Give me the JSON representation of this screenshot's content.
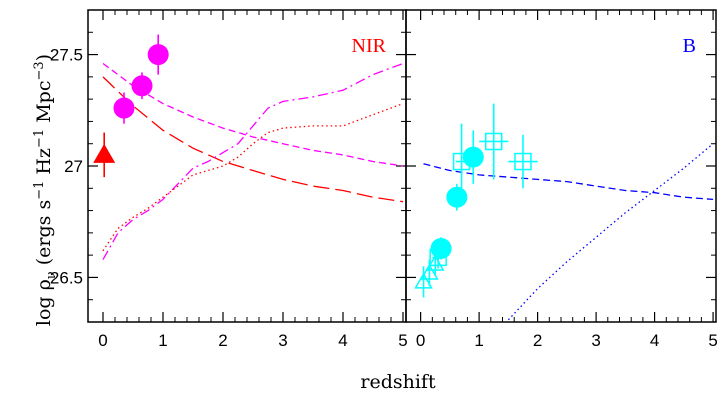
{
  "chart_data": [
    {
      "type": "scatter",
      "panel": "left",
      "panel_label": "NIR",
      "panel_label_color": "#ff0000",
      "xlabel": "redshift",
      "ylabel": "log ρν (ergs s⁻¹ Hz⁻¹ Mpc⁻³)",
      "ylabel_parts": {
        "main": "log ρ",
        "sub": "ν",
        "units": " (ergs s",
        "exp1": "−1",
        "mid1": " Hz",
        "exp2": "−1",
        "mid2": " Mpc",
        "exp3": "−3",
        "close": ")"
      },
      "xlim": [
        -0.25,
        5.05
      ],
      "ylim": [
        26.3,
        27.7
      ],
      "x_ticks": [
        0,
        1,
        2,
        3,
        4,
        5
      ],
      "y_ticks": [
        26.5,
        27,
        27.5
      ],
      "y_tick_labels": [
        "26.5",
        "27",
        "27.5"
      ],
      "series": [
        {
          "marker": "filled-circle",
          "color": "#ff00ff",
          "points": [
            {
              "x": 0.35,
              "y": 27.26,
              "yerr": 0.07
            },
            {
              "x": 0.65,
              "y": 27.36,
              "yerr": 0.06
            },
            {
              "x": 0.92,
              "y": 27.5,
              "yerr": 0.09
            }
          ]
        },
        {
          "marker": "filled-triangle",
          "color": "#ff0000",
          "points": [
            {
              "x": 0.02,
              "y": 27.05,
              "yerr": 0.1
            }
          ]
        }
      ],
      "curves": [
        {
          "style": "short-dash",
          "color": "#ff00ff",
          "x": [
            0,
            0.5,
            1,
            1.5,
            2,
            2.5,
            3,
            3.5,
            4,
            4.5,
            5
          ],
          "y": [
            27.46,
            27.36,
            27.28,
            27.22,
            27.17,
            27.13,
            27.1,
            27.07,
            27.05,
            27.02,
            27.0
          ]
        },
        {
          "style": "long-dash",
          "color": "#ff0000",
          "x": [
            0,
            0.5,
            1,
            1.5,
            2,
            2.5,
            3,
            3.5,
            4,
            4.5,
            5
          ],
          "y": [
            27.4,
            27.27,
            27.16,
            27.08,
            27.02,
            26.98,
            26.94,
            26.91,
            26.89,
            26.86,
            26.84
          ]
        },
        {
          "style": "dot-dash",
          "color": "#ff00ff",
          "x": [
            0,
            0.25,
            0.5,
            0.75,
            1,
            1.25,
            1.5,
            1.75,
            2,
            2.25,
            2.5,
            2.75,
            3,
            3.5,
            4,
            4.5,
            5
          ],
          "y": [
            26.58,
            26.7,
            26.76,
            26.8,
            26.85,
            26.92,
            26.99,
            27.02,
            27.06,
            27.1,
            27.18,
            27.26,
            27.29,
            27.31,
            27.34,
            27.41,
            27.46
          ]
        },
        {
          "style": "dotted",
          "color": "#ff0000",
          "x": [
            0,
            0.25,
            0.5,
            0.75,
            1,
            1.25,
            1.5,
            1.75,
            2,
            2.25,
            2.5,
            2.75,
            3,
            3.5,
            4,
            4.5,
            5
          ],
          "y": [
            26.62,
            26.72,
            26.77,
            26.81,
            26.86,
            26.91,
            26.96,
            26.98,
            27.0,
            27.04,
            27.1,
            27.15,
            27.17,
            27.18,
            27.18,
            27.23,
            27.28
          ]
        }
      ]
    },
    {
      "type": "scatter",
      "panel": "right",
      "panel_label": "B",
      "panel_label_color": "#0000ff",
      "xlim": [
        -0.25,
        5.05
      ],
      "ylim": [
        26.3,
        27.7
      ],
      "x_ticks": [
        0,
        1,
        2,
        3,
        4,
        5
      ],
      "series": [
        {
          "marker": "filled-circle",
          "color": "#00ffff",
          "points": [
            {
              "x": 0.35,
              "y": 26.63,
              "yerr": 0.05
            },
            {
              "x": 0.62,
              "y": 26.86,
              "yerr": 0.06
            },
            {
              "x": 0.9,
              "y": 27.04,
              "yerr": 0.12
            }
          ]
        },
        {
          "marker": "open-square",
          "color": "#00ffff",
          "points": [
            {
              "x": 0.3,
              "y": 26.59,
              "yerr": 0.05,
              "xerr": 0.1
            },
            {
              "x": 0.7,
              "y": 27.02,
              "yerr": 0.17,
              "xerr": 0.1
            },
            {
              "x": 1.25,
              "y": 27.11,
              "yerr": 0.17,
              "xerr": 0.25
            },
            {
              "x": 1.75,
              "y": 27.02,
              "yerr": 0.12,
              "xerr": 0.25
            }
          ]
        },
        {
          "marker": "open-triangle",
          "color": "#00ffff",
          "points": [
            {
              "x": 0.05,
              "y": 26.48,
              "yerr": 0.07
            },
            {
              "x": 0.15,
              "y": 26.52,
              "yerr": 0.06
            },
            {
              "x": 0.25,
              "y": 26.56,
              "yerr": 0.05
            }
          ]
        }
      ],
      "curves": [
        {
          "style": "short-dash",
          "color": "#0000ff",
          "x": [
            0.05,
            0.5,
            1,
            1.5,
            2,
            2.5,
            3,
            3.5,
            4,
            4.5,
            5
          ],
          "y": [
            27.01,
            26.98,
            26.96,
            26.95,
            26.94,
            26.93,
            26.91,
            26.89,
            26.88,
            26.86,
            26.85
          ]
        },
        {
          "style": "dotted",
          "color": "#0000ff",
          "x": [
            1.5,
            2,
            2.5,
            3,
            3.5,
            4,
            4.5,
            5
          ],
          "y": [
            26.31,
            26.45,
            26.57,
            26.68,
            26.79,
            26.89,
            26.99,
            27.1
          ]
        }
      ]
    }
  ]
}
